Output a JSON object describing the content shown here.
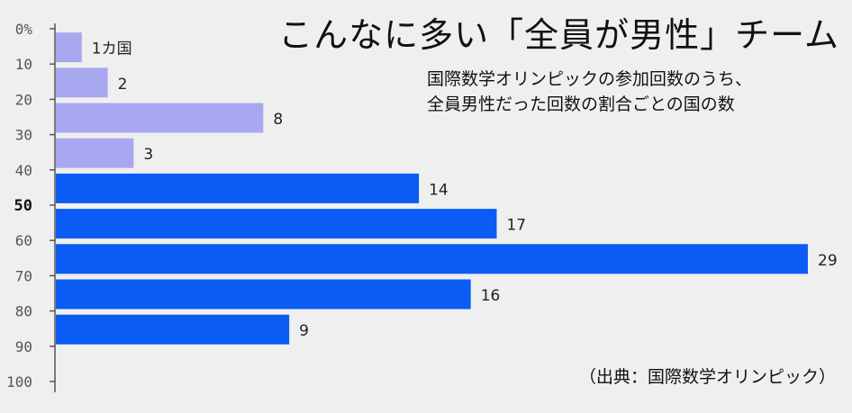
{
  "title": "こんなに多い「全員が男性」チーム",
  "subtitle_lines": [
    "国際数学オリンピックの参加回数のうち、",
    "全員男性だった回数の割合ごとの国の数"
  ],
  "source": "（出典：国際数学オリンピック）",
  "colors": {
    "light": "#a8a8f0",
    "dark": "#0a5cf5",
    "axis": "#555555",
    "text": "#222222"
  },
  "chart_data": {
    "type": "bar",
    "orientation": "horizontal",
    "y_tick_labels": [
      "0%",
      "10",
      "20",
      "30",
      "40",
      "50",
      "60",
      "70",
      "80",
      "90",
      "100"
    ],
    "bold_tick": "50",
    "bins": [
      "0-10",
      "10-20",
      "20-30",
      "30-40",
      "40-50",
      "50-60",
      "60-70",
      "70-80",
      "80-90",
      "90-100"
    ],
    "values": [
      1,
      2,
      8,
      3,
      14,
      17,
      29,
      16,
      9,
      null
    ],
    "value_labels": [
      "1カ国",
      "2",
      "8",
      "3",
      "14",
      "17",
      "29",
      "16",
      "9",
      ""
    ],
    "bar_colors": [
      "light",
      "light",
      "light",
      "light",
      "dark",
      "dark",
      "dark",
      "dark",
      "dark",
      "dark"
    ],
    "xlim": [
      0,
      29
    ]
  }
}
